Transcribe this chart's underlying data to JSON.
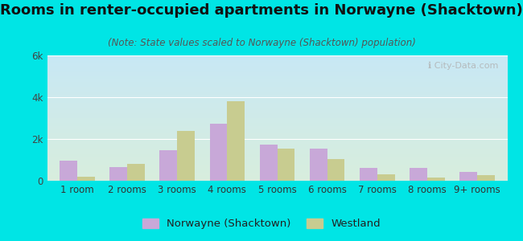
{
  "title": "Rooms in renter-occupied apartments in Norwayne (Shacktown)",
  "subtitle": "(Note: State values scaled to Norwayne (Shacktown) population)",
  "categories": [
    "1 room",
    "2 rooms",
    "3 rooms",
    "4 rooms",
    "5 rooms",
    "6 rooms",
    "7 rooms",
    "8 rooms",
    "9+ rooms"
  ],
  "norwayne_values": [
    950,
    650,
    1450,
    2750,
    1750,
    1550,
    600,
    630,
    430
  ],
  "westland_values": [
    200,
    800,
    2400,
    3800,
    1550,
    1050,
    320,
    150,
    280
  ],
  "norwayne_color": "#c8a8d8",
  "westland_color": "#c8cc90",
  "ylim": [
    0,
    6000
  ],
  "yticks": [
    0,
    2000,
    4000,
    6000
  ],
  "ytick_labels": [
    "0",
    "2k",
    "4k",
    "6k"
  ],
  "bar_width": 0.35,
  "background_color": "#00e5e5",
  "plot_bg_top": "#c8e8f5",
  "plot_bg_bottom": "#d8eedd",
  "legend_norwayne": "Norwayne (Shacktown)",
  "legend_westland": "Westland",
  "watermark": "ℹ City-Data.com",
  "title_fontsize": 13,
  "subtitle_fontsize": 8.5,
  "axis_fontsize": 8.5,
  "legend_fontsize": 9.5
}
